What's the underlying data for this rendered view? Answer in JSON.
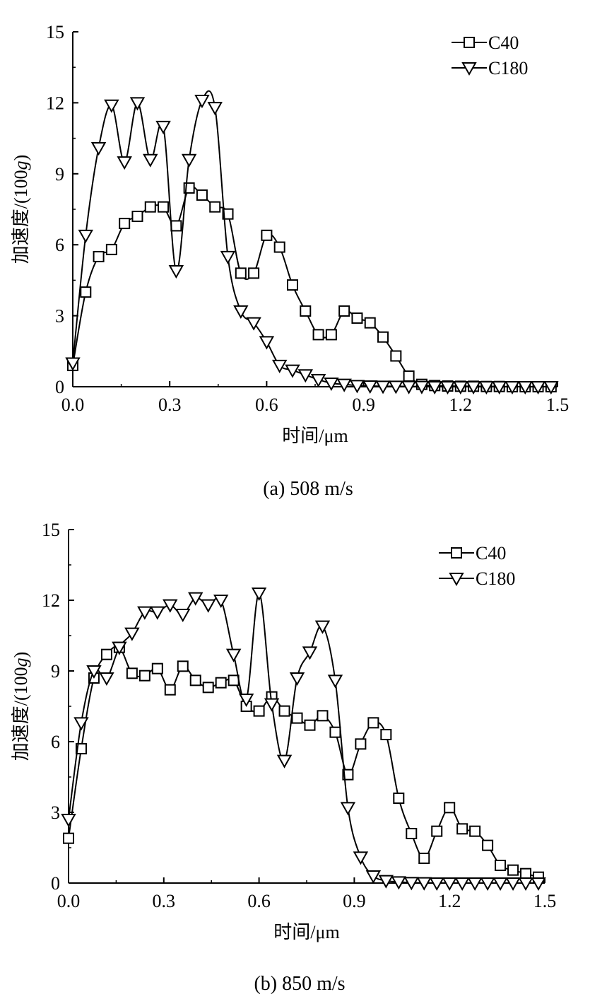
{
  "chart_data": [
    {
      "type": "line",
      "caption": "(a) 508 m/s",
      "xlabel": "时间/μm",
      "ylabel_prefix": "加速度/(100",
      "ylabel_italic": "g",
      "ylabel_suffix": ")",
      "xlim": [
        0,
        1.5
      ],
      "ylim": [
        0,
        15
      ],
      "xticks": [
        "0.0",
        "0.3",
        "0.6",
        "0.9",
        "1.2",
        "1.5"
      ],
      "yticks": [
        "0",
        "3",
        "6",
        "9",
        "12",
        "15"
      ],
      "grid": false,
      "legend": "top-right",
      "series": [
        {
          "name": "C40",
          "marker": "square",
          "x": [
            0,
            0.04,
            0.08,
            0.12,
            0.16,
            0.2,
            0.24,
            0.28,
            0.32,
            0.36,
            0.4,
            0.44,
            0.48,
            0.52,
            0.56,
            0.6,
            0.64,
            0.68,
            0.72,
            0.76,
            0.8,
            0.84,
            0.88,
            0.92,
            0.96,
            1.0,
            1.04,
            1.08,
            1.12,
            1.16,
            1.2,
            1.24,
            1.28,
            1.32,
            1.36,
            1.4,
            1.44,
            1.48
          ],
          "y": [
            0.9,
            4.0,
            5.5,
            5.8,
            6.9,
            7.2,
            7.6,
            7.6,
            6.8,
            8.4,
            8.1,
            7.6,
            7.3,
            4.8,
            4.8,
            6.4,
            5.9,
            4.3,
            3.2,
            2.2,
            2.2,
            3.2,
            2.9,
            2.7,
            2.1,
            1.3,
            0.45,
            0.1,
            0.05,
            0.03,
            0.02,
            0.02,
            0.01,
            0.01,
            0,
            0,
            0,
            0
          ]
        },
        {
          "name": "C180",
          "marker": "triangle-down",
          "x": [
            0,
            0.04,
            0.08,
            0.12,
            0.16,
            0.2,
            0.24,
            0.28,
            0.32,
            0.36,
            0.4,
            0.44,
            0.48,
            0.52,
            0.56,
            0.6,
            0.64,
            0.68,
            0.72,
            0.76,
            0.8,
            0.84,
            0.88,
            0.92,
            0.96,
            1.0,
            1.04,
            1.08,
            1.12,
            1.16,
            1.2,
            1.24,
            1.28,
            1.32,
            1.36,
            1.4,
            1.44,
            1.48
          ],
          "y": [
            1.0,
            6.4,
            10.1,
            11.9,
            9.5,
            12.0,
            9.6,
            11.0,
            4.9,
            9.6,
            12.1,
            11.8,
            5.5,
            3.2,
            2.7,
            1.9,
            0.9,
            0.7,
            0.5,
            0.3,
            0.15,
            0.1,
            0.05,
            0.03,
            0.02,
            0.02,
            0.01,
            0.01,
            0,
            0,
            0,
            0,
            0,
            0,
            0,
            0,
            0,
            0
          ]
        }
      ]
    },
    {
      "type": "line",
      "caption": "(b) 850 m/s",
      "xlabel": "时间/μm",
      "ylabel_prefix": "加速度/(100",
      "ylabel_italic": "g",
      "ylabel_suffix": ")",
      "xlim": [
        0,
        1.5
      ],
      "ylim": [
        0,
        15
      ],
      "xticks": [
        "0.0",
        "0.3",
        "0.6",
        "0.9",
        "1.2",
        "1.5"
      ],
      "yticks": [
        "0",
        "3",
        "6",
        "9",
        "12",
        "15"
      ],
      "grid": false,
      "legend": "top-right",
      "series": [
        {
          "name": "C40",
          "marker": "square",
          "x": [
            0,
            0.04,
            0.08,
            0.12,
            0.16,
            0.2,
            0.24,
            0.28,
            0.32,
            0.36,
            0.4,
            0.44,
            0.48,
            0.52,
            0.56,
            0.6,
            0.64,
            0.68,
            0.72,
            0.76,
            0.8,
            0.84,
            0.88,
            0.92,
            0.96,
            1.0,
            1.04,
            1.08,
            1.12,
            1.16,
            1.2,
            1.24,
            1.28,
            1.32,
            1.36,
            1.4,
            1.44,
            1.48
          ],
          "y": [
            1.9,
            5.7,
            8.7,
            9.7,
            10.0,
            8.9,
            8.8,
            9.1,
            8.2,
            9.2,
            8.6,
            8.3,
            8.5,
            8.6,
            7.5,
            7.3,
            7.9,
            7.3,
            7.0,
            6.7,
            7.1,
            6.4,
            4.6,
            5.9,
            6.8,
            6.3,
            3.6,
            2.1,
            1.05,
            2.2,
            3.2,
            2.3,
            2.2,
            1.6,
            0.75,
            0.55,
            0.4,
            0.25
          ]
        },
        {
          "name": "C180",
          "marker": "triangle-down",
          "x": [
            0,
            0.04,
            0.08,
            0.12,
            0.16,
            0.2,
            0.24,
            0.28,
            0.32,
            0.36,
            0.4,
            0.44,
            0.48,
            0.52,
            0.56,
            0.6,
            0.64,
            0.68,
            0.72,
            0.76,
            0.8,
            0.84,
            0.88,
            0.92,
            0.96,
            1.0,
            1.04,
            1.08,
            1.12,
            1.16,
            1.2,
            1.24,
            1.28,
            1.32,
            1.36,
            1.4,
            1.44,
            1.48
          ],
          "y": [
            2.7,
            6.8,
            9.0,
            8.7,
            10.0,
            10.6,
            11.5,
            11.5,
            11.8,
            11.4,
            12.1,
            11.8,
            12.0,
            9.7,
            7.8,
            12.3,
            7.6,
            5.2,
            8.7,
            9.8,
            10.9,
            8.6,
            3.2,
            1.1,
            0.3,
            0.1,
            0.05,
            0.02,
            0.01,
            0,
            0,
            0,
            0,
            0,
            0,
            0,
            0,
            0
          ]
        }
      ]
    }
  ]
}
